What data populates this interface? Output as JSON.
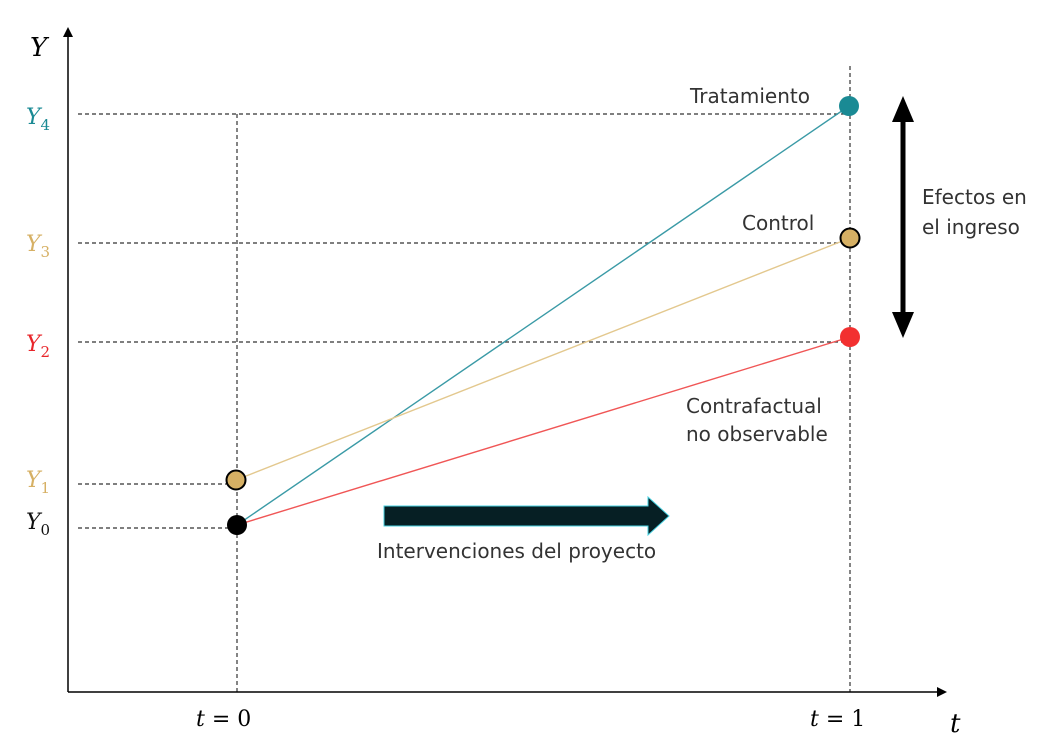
{
  "axes": {
    "y_label": "Y",
    "x_label": "t",
    "x_ticks": [
      {
        "t": "t",
        "eq": " = ",
        "n": "0"
      },
      {
        "t": "t",
        "eq": " = ",
        "n": "1"
      }
    ],
    "y_ticks": [
      {
        "key": "Y4",
        "base": "Y",
        "sub": "4",
        "color": "#1a8a94"
      },
      {
        "key": "Y3",
        "base": "Y",
        "sub": "3",
        "color": "#d6b064"
      },
      {
        "key": "Y2",
        "base": "Y",
        "sub": "2",
        "color": "#e8252a"
      },
      {
        "key": "Y1",
        "base": "Y",
        "sub": "1",
        "color": "#d6b064"
      },
      {
        "key": "Y0",
        "base": "Y",
        "sub": "0",
        "color": "#111111"
      }
    ]
  },
  "series": [
    {
      "name": "Tratamiento",
      "from": "Y0",
      "to": "Y4",
      "line_color": "#3a9aa6",
      "point_color": "#1a8a94"
    },
    {
      "name": "Control",
      "from": "Y1",
      "to": "Y3",
      "line_color": "#e3c88e",
      "point_color": "#d6b064"
    },
    {
      "name": "Contrafactual no observable",
      "from": "Y0",
      "to": "Y2",
      "line_color": "#f05656",
      "point_color": "#f23030"
    }
  ],
  "labels": {
    "tratamiento": "Tratamiento",
    "control": "Control",
    "contrafactual_line1": "Contrafactual",
    "contrafactual_line2": "no observable",
    "efectos_line1": "Efectos en",
    "efectos_line2": "el ingreso",
    "intervenciones": "Intervenciones del proyecto"
  },
  "colors": {
    "axis": "#000000",
    "guide": "#333333",
    "arrow_fill": "#061f24",
    "arrow_stroke": "#47d1e0",
    "start_point": "#000000"
  }
}
